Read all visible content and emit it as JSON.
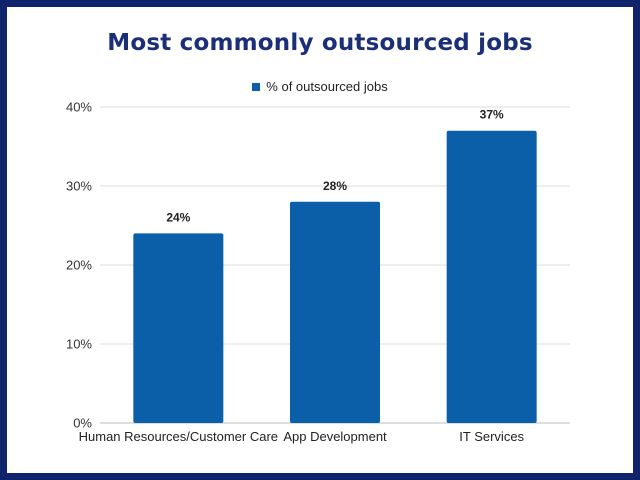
{
  "chart_data": {
    "type": "bar",
    "title": "Most commonly outsourced jobs",
    "categories": [
      "Human Resources/Customer Care",
      "App Development",
      "IT Services"
    ],
    "series": [
      {
        "name": "% of outsourced jobs",
        "values": [
          24,
          28,
          37
        ],
        "labels": [
          "24%",
          "28%",
          "37%"
        ],
        "color": "#0b5fa8"
      }
    ],
    "ylim": [
      0,
      40
    ],
    "yticks": [
      0,
      10,
      20,
      30,
      40
    ],
    "ytick_labels": [
      "0%",
      "10%",
      "20%",
      "30%",
      "40%"
    ],
    "xlabel": "",
    "ylabel": "",
    "grid": true,
    "legend": "top-center"
  },
  "colors": {
    "border": "#11236b",
    "title": "#1b2e78",
    "bar": "#0b5fa8",
    "grid": "#dcdcdc"
  }
}
